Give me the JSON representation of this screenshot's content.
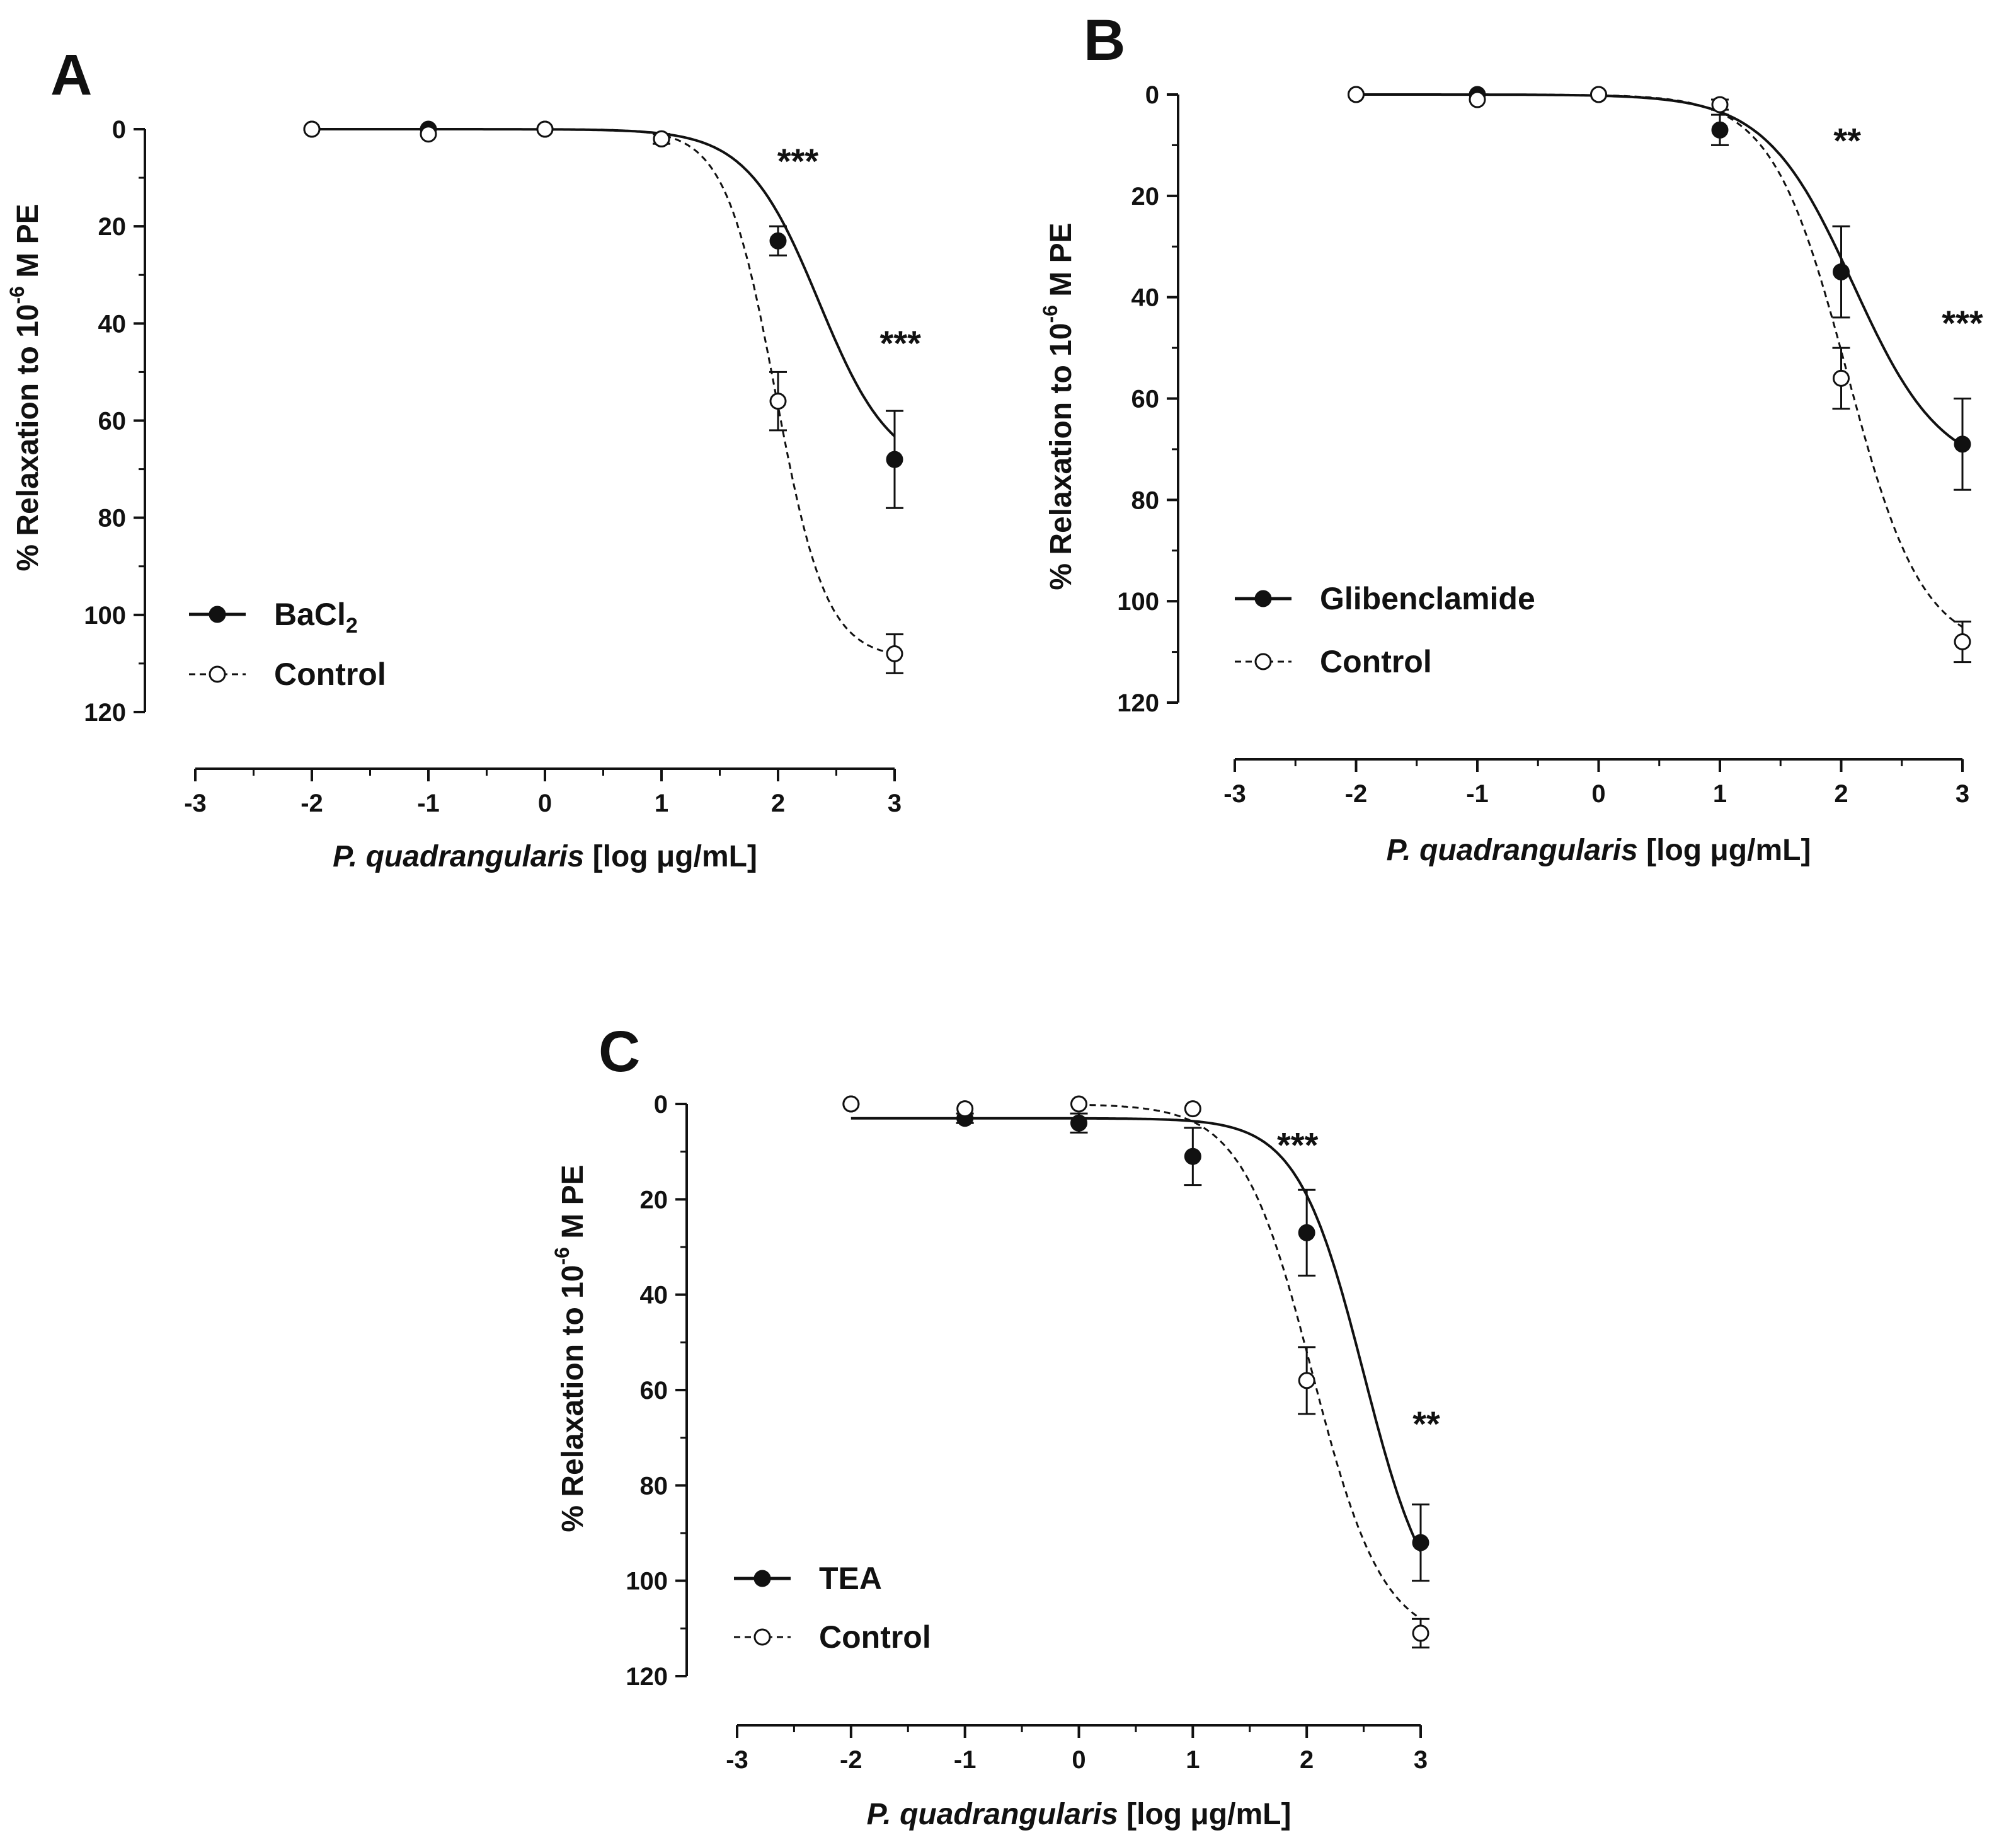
{
  "chart_data": [
    {
      "type": "scatter",
      "panel": "A",
      "xlabel": {
        "italic": "P. quadrangularis",
        "rest": " [log μg/mL]"
      },
      "ylabel": "% Relaxation to 10",
      "ylabel_sup": "-6",
      "ylabel_end": " M PE",
      "xlim": [
        -3,
        3
      ],
      "ylim": [
        0,
        120
      ],
      "y_inverted": true,
      "xticks": [
        -3,
        -2,
        -1,
        0,
        1,
        2,
        3
      ],
      "yticks": [
        0,
        20,
        40,
        60,
        80,
        100,
        120
      ],
      "legend_position": "bottom-left",
      "series": [
        {
          "name": "BaCl",
          "name_sub": "2",
          "marker": "filled",
          "line": "solid",
          "x": [
            -2,
            -1,
            0,
            1,
            2,
            3
          ],
          "y": [
            0,
            0,
            0,
            2,
            23,
            68
          ],
          "err": [
            0,
            0,
            0,
            1,
            3,
            10
          ],
          "fit": {
            "bottom": 0,
            "top": 71,
            "logec50": 2.35,
            "hill": 1.4
          }
        },
        {
          "name": "Control",
          "name_sub": "",
          "marker": "open",
          "line": "dashed",
          "x": [
            -2,
            -1,
            0,
            1,
            2,
            3
          ],
          "y": [
            0,
            1,
            0,
            2,
            56,
            108
          ],
          "err": [
            0,
            0,
            0,
            1,
            6,
            4
          ],
          "fit": {
            "bottom": 0,
            "top": 109,
            "logec50": 1.98,
            "hill": 2.0
          }
        }
      ],
      "annotations": [
        {
          "text": "***",
          "x": 2.17,
          "y": 6.5
        },
        {
          "text": "***",
          "x": 3.05,
          "y": 44
        }
      ]
    },
    {
      "type": "scatter",
      "panel": "B",
      "xlabel": {
        "italic": "P. quadrangularis",
        "rest": " [log μg/mL]"
      },
      "ylabel": "% Relaxation to 10",
      "ylabel_sup": "-6",
      "ylabel_end": " M PE",
      "xlim": [
        -3,
        3
      ],
      "ylim": [
        0,
        120
      ],
      "y_inverted": true,
      "xticks": [
        -3,
        -2,
        -1,
        0,
        1,
        2,
        3
      ],
      "yticks": [
        0,
        20,
        40,
        60,
        80,
        100,
        120
      ],
      "legend_position": "bottom-left",
      "series": [
        {
          "name": "Glibenclamide",
          "name_sub": "",
          "marker": "filled",
          "line": "solid",
          "x": [
            -2,
            -1,
            0,
            1,
            2,
            3
          ],
          "y": [
            0,
            0,
            0,
            7,
            35,
            69
          ],
          "err": [
            0,
            0,
            0,
            3,
            9,
            9
          ],
          "fit": {
            "bottom": 0,
            "top": 75,
            "logec50": 2.1,
            "hill": 1.2
          }
        },
        {
          "name": "Control",
          "name_sub": "",
          "marker": "open",
          "line": "dashed",
          "x": [
            -2,
            -1,
            0,
            1,
            2,
            3
          ],
          "y": [
            0,
            1,
            0,
            2,
            56,
            108
          ],
          "err": [
            0,
            0,
            0,
            1,
            6,
            4
          ],
          "fit": {
            "bottom": 0,
            "top": 110,
            "logec50": 2.05,
            "hill": 1.4
          }
        }
      ],
      "annotations": [
        {
          "text": "**",
          "x": 2.05,
          "y": 9
        },
        {
          "text": "***",
          "x": 3,
          "y": 45
        }
      ]
    },
    {
      "type": "scatter",
      "panel": "C",
      "xlabel": {
        "italic": "P. quadrangularis",
        "rest": " [log μg/mL]"
      },
      "ylabel": "% Relaxation to 10",
      "ylabel_sup": "-6",
      "ylabel_end": " M PE",
      "xlim": [
        -3,
        3
      ],
      "ylim": [
        0,
        120
      ],
      "y_inverted": true,
      "xticks": [
        -3,
        -2,
        -1,
        0,
        1,
        2,
        3
      ],
      "yticks": [
        0,
        20,
        40,
        60,
        80,
        100,
        120
      ],
      "legend_position": "bottom-left",
      "series": [
        {
          "name": "TEA",
          "name_sub": "",
          "marker": "filled",
          "line": "solid",
          "x": [
            -2,
            -1,
            0,
            1,
            2,
            3
          ],
          "y": [
            0,
            3,
            4,
            11,
            27,
            92
          ],
          "err": [
            0,
            1,
            2,
            6,
            9,
            8
          ],
          "fit": {
            "bottom": 3,
            "top": 110,
            "logec50": 2.5,
            "hill": 1.5,
            "xmin": -2
          }
        },
        {
          "name": "Control",
          "name_sub": "",
          "marker": "open",
          "line": "dashed",
          "x": [
            -2,
            -1,
            0,
            1,
            2,
            3
          ],
          "y": [
            0,
            1,
            0,
            1,
            58,
            111
          ],
          "err": [
            0,
            0,
            0,
            0,
            7,
            3
          ],
          "fit": {
            "bottom": 0,
            "top": 113,
            "logec50": 2.05,
            "hill": 1.4,
            "xmin": 0
          }
        }
      ],
      "annotations": [
        {
          "text": "***",
          "x": 1.92,
          "y": 8.5
        },
        {
          "text": "**",
          "x": 3.05,
          "y": 67
        }
      ]
    }
  ]
}
